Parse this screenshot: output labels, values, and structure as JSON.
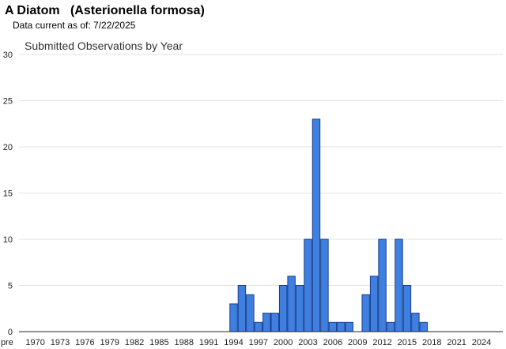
{
  "header": {
    "species_title": "A Diatom   (Asterionella formosa)",
    "data_current": "Data current as of: 7/22/2025"
  },
  "chart_data": {
    "type": "bar",
    "title": "Submitted Observations by Year",
    "xlabel": "",
    "ylabel": "",
    "ylim": [
      0,
      30
    ],
    "yticks": [
      0,
      5,
      10,
      15,
      20,
      25,
      30
    ],
    "grid": true,
    "legend": "none",
    "bar_color": "#3f7fe0",
    "bar_edge_color": "#1a3f8a",
    "categories": [
      "pre 1970",
      "1970",
      "1971",
      "1972",
      "1973",
      "1974",
      "1975",
      "1976",
      "1977",
      "1978",
      "1979",
      "1980",
      "1981",
      "1982",
      "1983",
      "1984",
      "1985",
      "1986",
      "1987",
      "1988",
      "1989",
      "1990",
      "1991",
      "1992",
      "1993",
      "1994",
      "1995",
      "1996",
      "1997",
      "1998",
      "1999",
      "2000",
      "2001",
      "2002",
      "2003",
      "2004",
      "2005",
      "2006",
      "2007",
      "2008",
      "2009",
      "2010",
      "2011",
      "2012",
      "2013",
      "2014",
      "2015",
      "2016",
      "2017",
      "2018",
      "2019",
      "2020",
      "2021",
      "2022",
      "2023",
      "2024",
      "2025"
    ],
    "values": [
      0,
      0,
      0,
      0,
      0,
      0,
      0,
      0,
      0,
      0,
      0,
      0,
      0,
      0,
      0,
      0,
      0,
      0,
      0,
      0,
      0,
      0,
      0,
      0,
      0,
      3,
      5,
      4,
      1,
      2,
      2,
      5,
      6,
      5,
      10,
      23,
      10,
      1,
      1,
      1,
      0,
      4,
      6,
      10,
      1,
      10,
      5,
      2,
      1,
      0,
      0,
      0,
      0,
      0,
      0,
      0,
      0
    ],
    "x_tick_labels": [
      "pre",
      "1970",
      "1973",
      "1976",
      "1979",
      "1982",
      "1985",
      "1988",
      "1991",
      "1994",
      "1997",
      "2000",
      "2003",
      "2006",
      "2009",
      "2012",
      "2015",
      "2018",
      "2021",
      "2024"
    ]
  }
}
